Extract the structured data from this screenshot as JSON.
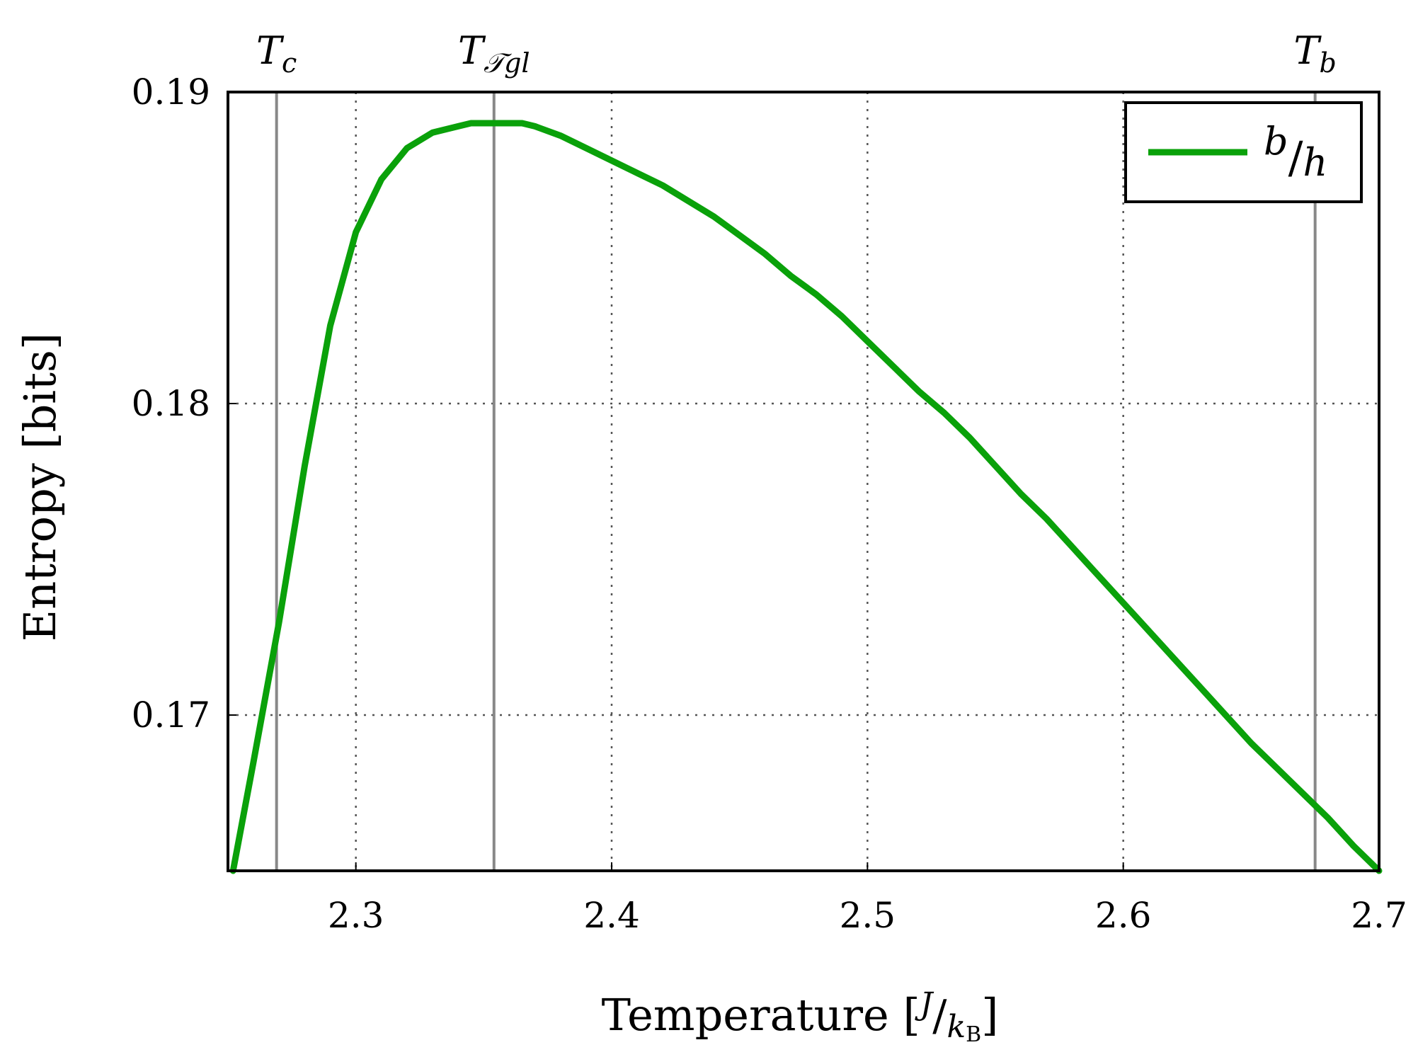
{
  "chart_data": {
    "type": "line",
    "xlabel": "Temperature [J/k_B]",
    "ylabel": "Entropy [bits]",
    "xlim": [
      2.25,
      2.7
    ],
    "ylim": [
      0.165,
      0.19
    ],
    "xticks": [
      2.3,
      2.4,
      2.5,
      2.6,
      2.7
    ],
    "xtick_labels": [
      "2.3",
      "2.4",
      "2.5",
      "2.6",
      "2.7"
    ],
    "yticks": [
      0.17,
      0.18,
      0.19
    ],
    "ytick_labels": [
      "0.17",
      "0.18",
      "0.19"
    ],
    "grid": "dotted",
    "legend_position": "top-right",
    "colors": {
      "series": "#0aa10a",
      "marker_line": "#888888",
      "grid": "#555555"
    },
    "markers": [
      {
        "label": "T",
        "sub": "c",
        "x": 2.269
      },
      {
        "label": "T",
        "sub": "𝒯gl",
        "x": 2.354
      },
      {
        "label": "T",
        "sub": "b",
        "x": 2.675
      }
    ],
    "series": [
      {
        "name": "b/h",
        "x": [
          2.252,
          2.26,
          2.27,
          2.28,
          2.29,
          2.3,
          2.31,
          2.32,
          2.33,
          2.34,
          2.345,
          2.355,
          2.365,
          2.37,
          2.38,
          2.39,
          2.4,
          2.41,
          2.42,
          2.43,
          2.44,
          2.45,
          2.46,
          2.47,
          2.48,
          2.49,
          2.5,
          2.51,
          2.52,
          2.53,
          2.54,
          2.55,
          2.56,
          2.57,
          2.58,
          2.59,
          2.6,
          2.61,
          2.62,
          2.63,
          2.64,
          2.65,
          2.66,
          2.67,
          2.68,
          2.69,
          2.7
        ],
        "y": [
          0.165,
          0.1685,
          0.173,
          0.178,
          0.1825,
          0.1855,
          0.1872,
          0.1882,
          0.1887,
          0.1889,
          0.189,
          0.189,
          0.189,
          0.1889,
          0.1886,
          0.1882,
          0.1878,
          0.1874,
          0.187,
          0.1865,
          0.186,
          0.1854,
          0.1848,
          0.1841,
          0.1835,
          0.1828,
          0.182,
          0.1812,
          0.1804,
          0.1797,
          0.1789,
          0.178,
          0.1771,
          0.1763,
          0.1754,
          0.1745,
          0.1736,
          0.1727,
          0.1718,
          0.1709,
          0.17,
          0.1691,
          0.1683,
          0.1675,
          0.1667,
          0.1658,
          0.165
        ]
      }
    ]
  }
}
